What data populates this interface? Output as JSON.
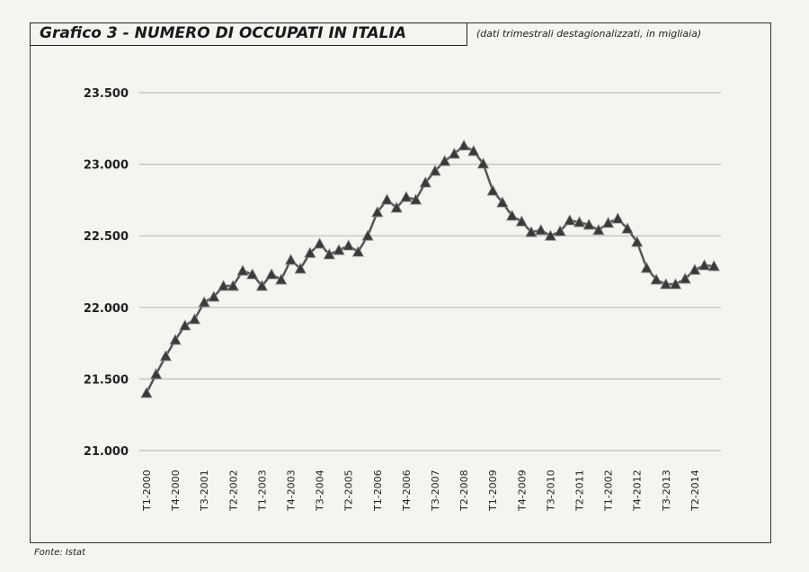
{
  "header": {
    "title": "Grafico 3 - NUMERO DI OCCUPATI IN ITALIA",
    "subtitle": "(dati trimestrali destagionalizzati, in migliaia)"
  },
  "footer": {
    "source": "Fonte: Istat"
  },
  "chart_data": {
    "type": "line",
    "title": "Grafico 3 - NUMERO DI OCCUPATI IN ITALIA",
    "subtitle": "(dati trimestrali destagionalizzati, in migliaia)",
    "xlabel": "",
    "ylabel": "",
    "ylim": [
      21000,
      23500
    ],
    "yticks": [
      21000,
      21500,
      22000,
      22500,
      23000,
      23500
    ],
    "ytick_labels": [
      "21.000",
      "21.500",
      "22.000",
      "22.500",
      "23.000",
      "23.500"
    ],
    "xtick_labels": [
      "T1-2000",
      "T4-2000",
      "T3-2001",
      "T2-2002",
      "T1-2003",
      "T4-2003",
      "T3-2004",
      "T2-2005",
      "T1-2006",
      "T4-2006",
      "T3-2007",
      "T2-2008",
      "T1-2009",
      "T4-2009",
      "T3-2010",
      "T2-2011",
      "T1-2002",
      "T4-2012",
      "T3-2013",
      "T2-2014"
    ],
    "xtick_every_quarters": 3,
    "grid": "horizontal",
    "marker": "triangle",
    "colors": {
      "line": "#555555",
      "marker": "#3a3a3a",
      "grid": "#bdbdbd"
    },
    "x_period": "T1-2000 to T4-2014 (quarterly)",
    "values": [
      21402,
      21534,
      21660,
      21773,
      21873,
      21917,
      22036,
      22074,
      22150,
      22150,
      22256,
      22231,
      22150,
      22231,
      22194,
      22332,
      22270,
      22380,
      22445,
      22370,
      22400,
      22432,
      22388,
      22500,
      22665,
      22752,
      22696,
      22771,
      22752,
      22872,
      22953,
      23022,
      23073,
      23130,
      23092,
      23004,
      22815,
      22733,
      22640,
      22600,
      22526,
      22540,
      22500,
      22532,
      22608,
      22595,
      22577,
      22540,
      22590,
      22620,
      22550,
      22457,
      22275,
      22194,
      22162,
      22162,
      22200,
      22262,
      22294,
      22288
    ]
  }
}
